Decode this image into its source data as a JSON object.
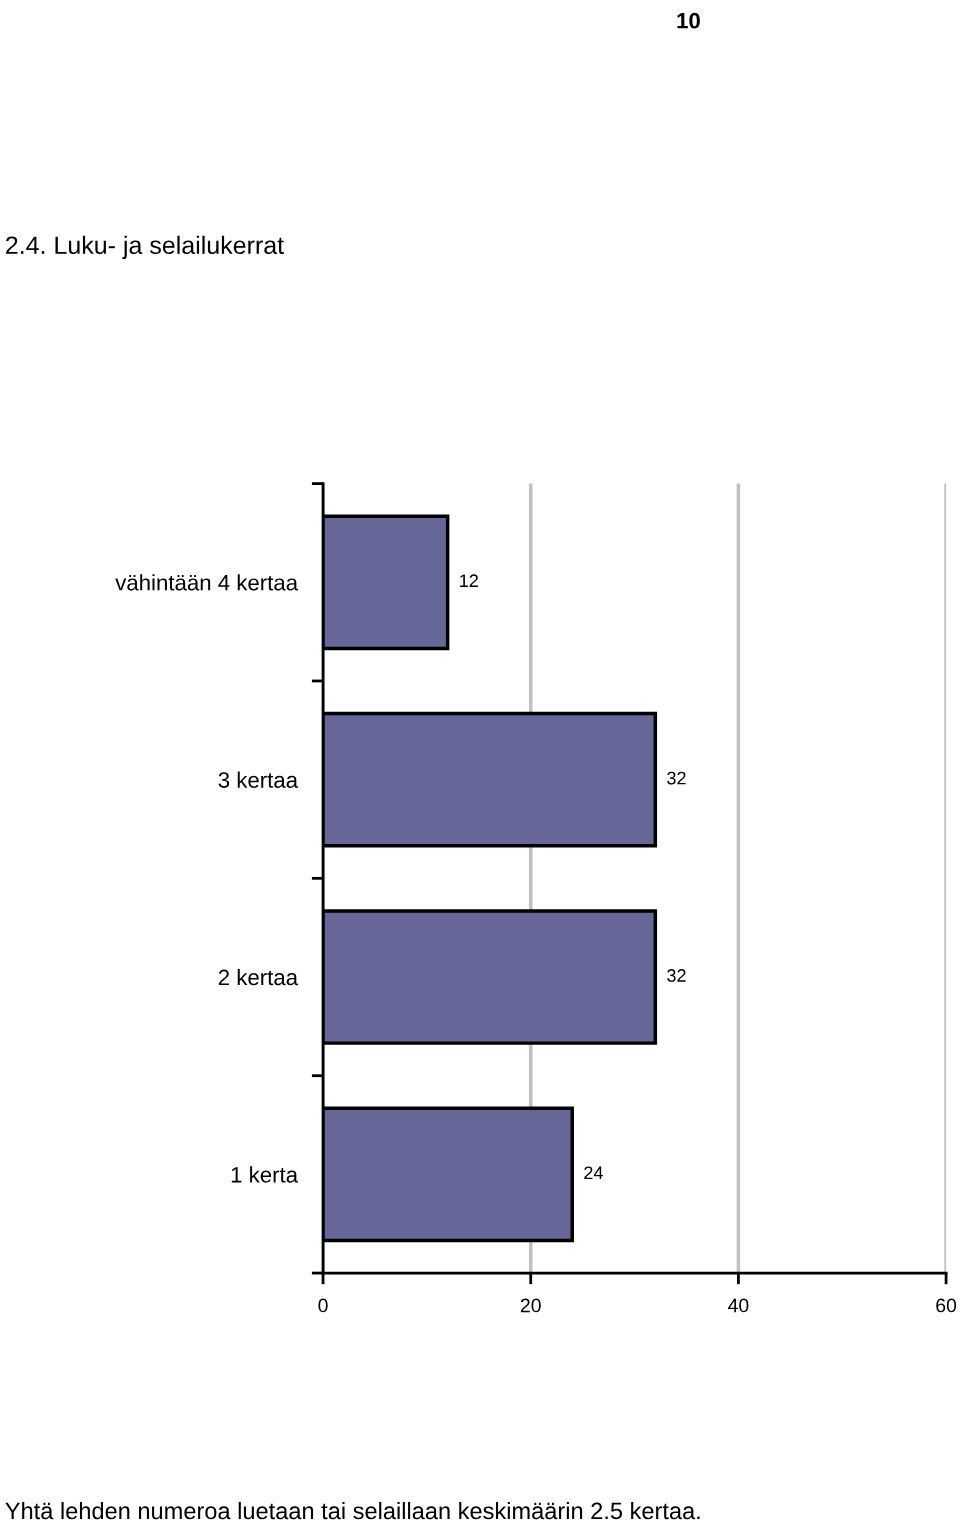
{
  "chart_data": {
    "type": "bar",
    "orientation": "horizontal",
    "title": "2.4. Luku- ja selailukerrat",
    "categories": [
      "vähintään 4 kertaa",
      "3 kertaa",
      "2 kertaa",
      "1 kerta"
    ],
    "values": [
      12,
      32,
      32,
      24
    ],
    "color": "#666699",
    "xlim": [
      0,
      60
    ],
    "xticks": [
      0,
      20,
      40,
      60
    ],
    "grid": "x",
    "data_labels": true,
    "annotations": [
      "10",
      "Yhtä lehden numeroa luetaan tai selaillaan keskimäärin 2.5 kertaa."
    ]
  }
}
